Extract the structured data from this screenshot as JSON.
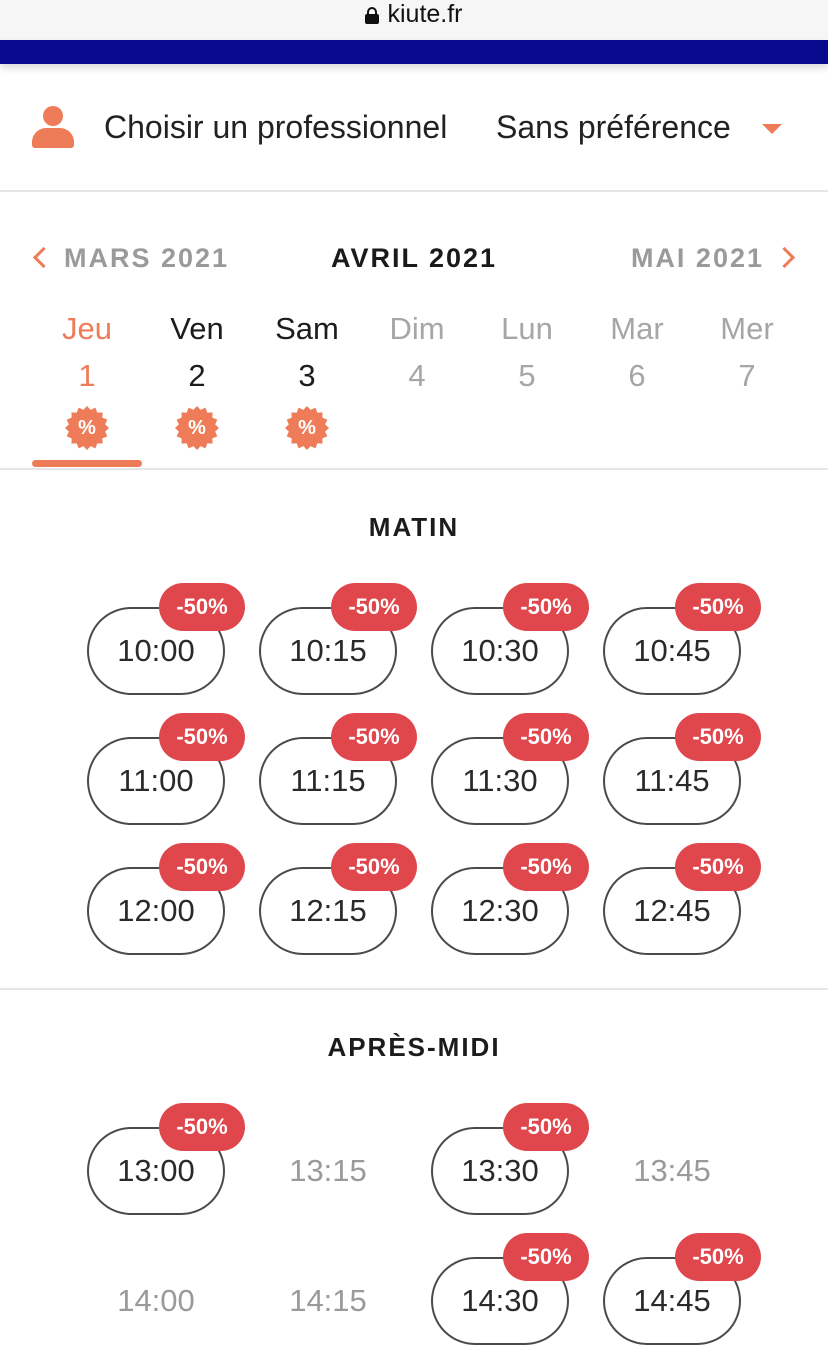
{
  "browser": {
    "url": "kiute.fr"
  },
  "professional": {
    "label": "Choisir un professionnel",
    "value": "Sans préférence"
  },
  "months": {
    "prev": "MARS 2021",
    "current": "AVRIL 2021",
    "next": "MAI 2021"
  },
  "days": [
    {
      "name": "Jeu",
      "num": "1",
      "state": "active",
      "promo": "%"
    },
    {
      "name": "Ven",
      "num": "2",
      "state": "available",
      "promo": "%"
    },
    {
      "name": "Sam",
      "num": "3",
      "state": "available",
      "promo": "%"
    },
    {
      "name": "Dim",
      "num": "4",
      "state": "unavailable",
      "promo": ""
    },
    {
      "name": "Lun",
      "num": "5",
      "state": "unavailable",
      "promo": ""
    },
    {
      "name": "Mar",
      "num": "6",
      "state": "unavailable",
      "promo": ""
    },
    {
      "name": "Mer",
      "num": "7",
      "state": "unavailable",
      "promo": ""
    }
  ],
  "sections": {
    "morning": {
      "title": "MATIN",
      "slots": [
        {
          "time": "10:00",
          "badge": "-50%",
          "available": true
        },
        {
          "time": "10:15",
          "badge": "-50%",
          "available": true
        },
        {
          "time": "10:30",
          "badge": "-50%",
          "available": true
        },
        {
          "time": "10:45",
          "badge": "-50%",
          "available": true
        },
        {
          "time": "11:00",
          "badge": "-50%",
          "available": true
        },
        {
          "time": "11:15",
          "badge": "-50%",
          "available": true
        },
        {
          "time": "11:30",
          "badge": "-50%",
          "available": true
        },
        {
          "time": "11:45",
          "badge": "-50%",
          "available": true
        },
        {
          "time": "12:00",
          "badge": "-50%",
          "available": true
        },
        {
          "time": "12:15",
          "badge": "-50%",
          "available": true
        },
        {
          "time": "12:30",
          "badge": "-50%",
          "available": true
        },
        {
          "time": "12:45",
          "badge": "-50%",
          "available": true
        }
      ]
    },
    "afternoon": {
      "title": "APRÈS-MIDI",
      "slots": [
        {
          "time": "13:00",
          "badge": "-50%",
          "available": true
        },
        {
          "time": "13:15",
          "badge": "",
          "available": false
        },
        {
          "time": "13:30",
          "badge": "-50%",
          "available": true
        },
        {
          "time": "13:45",
          "badge": "",
          "available": false
        },
        {
          "time": "14:00",
          "badge": "",
          "available": false
        },
        {
          "time": "14:15",
          "badge": "",
          "available": false
        },
        {
          "time": "14:30",
          "badge": "-50%",
          "available": true
        },
        {
          "time": "14:45",
          "badge": "-50%",
          "available": true
        }
      ]
    }
  },
  "colors": {
    "accent": "#ee7c58",
    "badge": "#e0474c",
    "navy": "#070a8c"
  }
}
